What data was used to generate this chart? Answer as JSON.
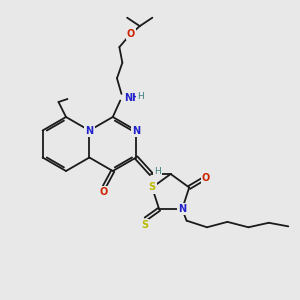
{
  "bg_color": "#e8e8e8",
  "bond_color": "#1a1a1a",
  "bond_width": 1.3,
  "N_color": "#2222cc",
  "O_color": "#cc2200",
  "S_color": "#bbbb00",
  "NH_color": "#3a8080",
  "figsize": [
    3.0,
    3.0
  ],
  "dpi": 100,
  "xlim": [
    0,
    10
  ],
  "ylim": [
    0,
    10
  ]
}
